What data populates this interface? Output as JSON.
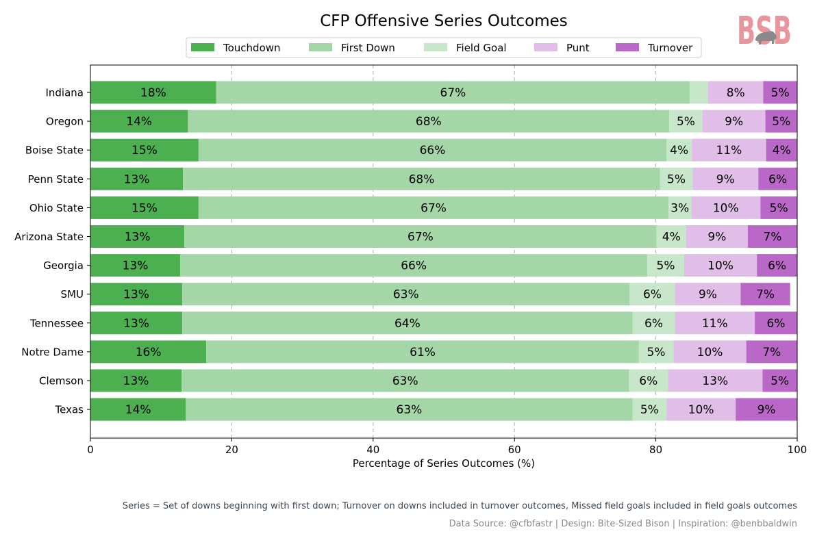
{
  "chart_data": {
    "type": "bar",
    "orientation": "horizontal",
    "stacked": true,
    "title": "CFP Offensive Series Outcomes",
    "xlabel": "Percentage of Series Outcomes (%)",
    "ylabel": "",
    "xlim": [
      0,
      100
    ],
    "xticks": [
      0,
      20,
      40,
      60,
      80,
      100
    ],
    "grid": "x dashed",
    "legend_position": "top-center",
    "categories": [
      "Indiana",
      "Oregon",
      "Boise State",
      "Penn State",
      "Ohio State",
      "Arizona State",
      "Georgia",
      "SMU",
      "Tennessee",
      "Notre Dame",
      "Clemson",
      "Texas"
    ],
    "series": [
      {
        "name": "Touchdown",
        "color": "#4caf50",
        "values": [
          17.8,
          13.8,
          15.3,
          13.1,
          15.3,
          13.3,
          12.7,
          13.0,
          13.0,
          16.4,
          12.9,
          13.5
        ]
      },
      {
        "name": "First Down",
        "color": "#a5d6a7",
        "values": [
          67.0,
          68.1,
          66.2,
          67.5,
          66.5,
          66.8,
          66.1,
          63.3,
          63.7,
          61.2,
          63.3,
          63.2
        ]
      },
      {
        "name": "Field Goal",
        "color": "#c8e6c9",
        "values": [
          2.6,
          4.7,
          3.6,
          4.6,
          3.2,
          4.2,
          5.2,
          6.4,
          6.0,
          4.9,
          5.5,
          4.8
        ]
      },
      {
        "name": "Punt",
        "color": "#e1bee7",
        "values": [
          7.8,
          8.9,
          10.5,
          9.3,
          9.8,
          8.7,
          10.3,
          9.3,
          11.3,
          10.3,
          13.4,
          9.8
        ]
      },
      {
        "name": "Turnover",
        "color": "#ba68c8",
        "values": [
          4.8,
          4.5,
          4.4,
          5.5,
          5.2,
          7.0,
          5.7,
          7.0,
          6.0,
          7.2,
          4.9,
          8.7
        ]
      }
    ],
    "label_format": "{value}%",
    "min_value_labeled": 3
  },
  "logo_text": "BSB",
  "footnote": "Series = Set of downs beginning with first down; Turnover on downs included in turnover outcomes, Missed field goals included in field goals outcomes",
  "source": "Data Source: @cfbfastr | Design: Bite-Sized Bison | Inspiration: @benbbaldwin"
}
